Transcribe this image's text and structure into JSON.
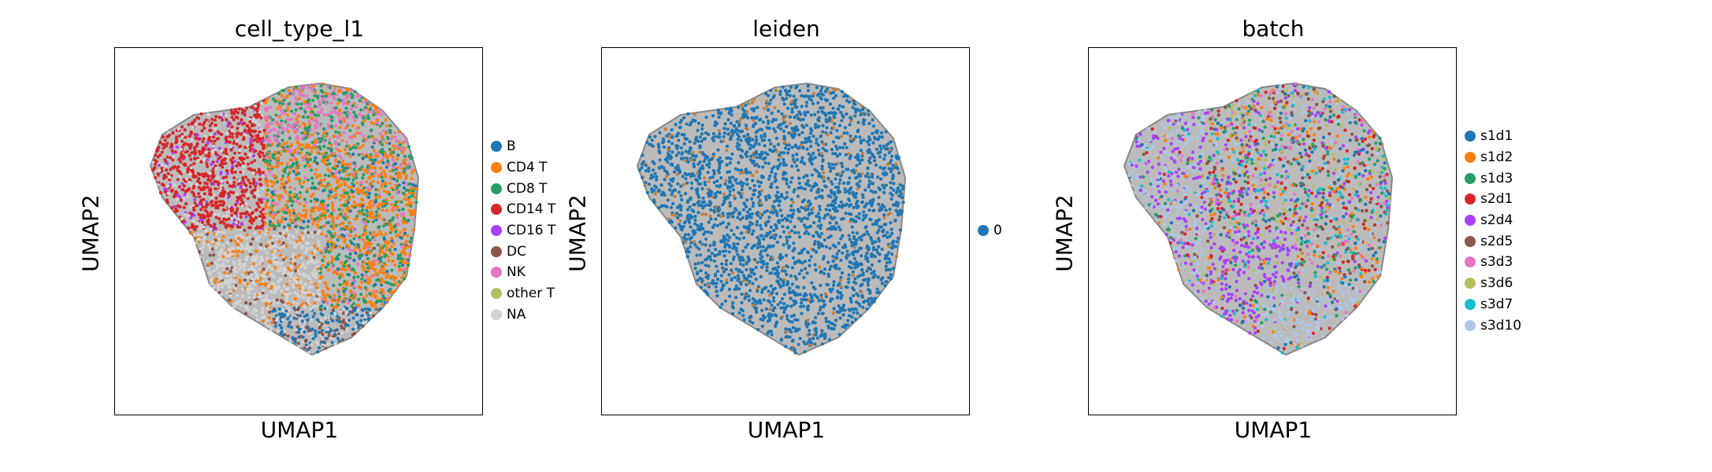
{
  "chart_data": [
    {
      "type": "scatter",
      "title": "cell_type_l1",
      "xlabel": "UMAP1",
      "ylabel": "UMAP2",
      "grid": false,
      "legend": "right",
      "series": [
        {
          "name": "B",
          "color": "#1f77b4"
        },
        {
          "name": "CD4 T",
          "color": "#ff7f0e"
        },
        {
          "name": "CD8 T",
          "color": "#279e68"
        },
        {
          "name": "CD14 T",
          "color": "#d62728"
        },
        {
          "name": "CD16 T",
          "color": "#aa40fc"
        },
        {
          "name": "DC",
          "color": "#8c564b"
        },
        {
          "name": "NK",
          "color": "#e377c2"
        },
        {
          "name": "other T",
          "color": "#b5bd61"
        },
        {
          "name": "NA",
          "color": "#d3d3d3"
        }
      ]
    },
    {
      "type": "scatter",
      "title": "leiden",
      "xlabel": "UMAP1",
      "ylabel": "UMAP2",
      "grid": false,
      "legend": "right",
      "series": [
        {
          "name": "0",
          "color": "#1f77b4"
        }
      ]
    },
    {
      "type": "scatter",
      "title": "batch",
      "xlabel": "UMAP1",
      "ylabel": "UMAP2",
      "grid": false,
      "legend": "right",
      "series": [
        {
          "name": "s1d1",
          "color": "#1f77b4"
        },
        {
          "name": "s1d2",
          "color": "#ff7f0e"
        },
        {
          "name": "s1d3",
          "color": "#279e68"
        },
        {
          "name": "s2d1",
          "color": "#d62728"
        },
        {
          "name": "s2d4",
          "color": "#aa40fc"
        },
        {
          "name": "s2d5",
          "color": "#8c564b"
        },
        {
          "name": "s3d3",
          "color": "#e377c2"
        },
        {
          "name": "s3d6",
          "color": "#b5bd61"
        },
        {
          "name": "s3d7",
          "color": "#17becf"
        },
        {
          "name": "s3d10",
          "color": "#aec7e8"
        }
      ]
    }
  ]
}
